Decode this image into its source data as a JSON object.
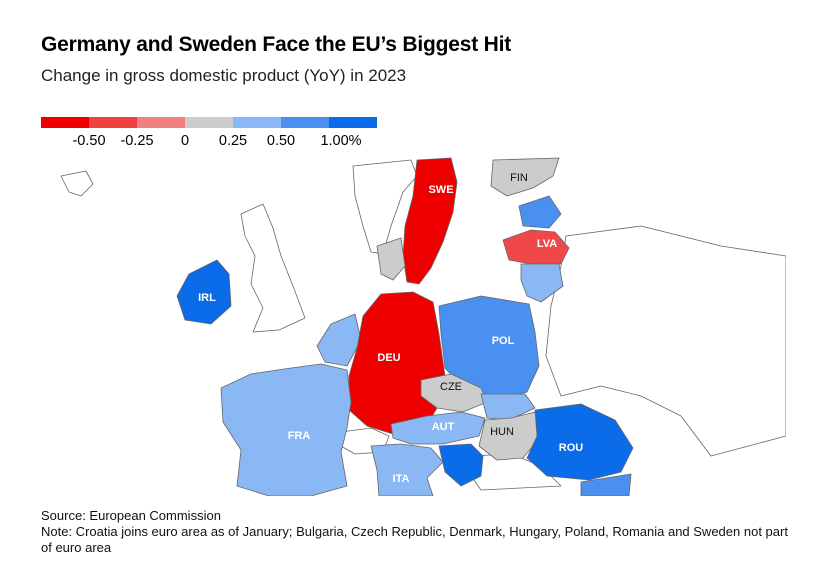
{
  "title": "Germany and Sweden Face the EU’s Biggest Hit",
  "subtitle": "Change in gross domestic product (YoY) in 2023",
  "legend": {
    "swatches": [
      "#ee0000",
      "#f04040",
      "#f28080",
      "#cccccc",
      "#8ab8f5",
      "#4a90f0",
      "#0a6ce8"
    ],
    "labels": [
      "-0.50",
      "-0.25",
      "0",
      "0.25",
      "0.50",
      "1.00%"
    ]
  },
  "colors": {
    "strong_negative": "#ee0000",
    "negative": "#f04848",
    "neutral": "#cccccc",
    "light_positive": "#8ab8f5",
    "positive": "#4a90f0",
    "strong_positive": "#0a6ce8",
    "non_eu": "#ffffff",
    "border": "#666666"
  },
  "countries": {
    "swe": "SWE",
    "fin": "FIN",
    "lva": "LVA",
    "irl": "IRL",
    "deu": "DEU",
    "pol": "POL",
    "cze": "CZE",
    "fra": "FRA",
    "aut": "AUT",
    "hun": "HUN",
    "rou": "ROU",
    "ita": "ITA"
  },
  "footer": {
    "source": "Source: European Commission",
    "note": "Note: Croatia joins euro area as of January; Bulgaria, Czech Republic, Denmark, Hungary, Poland, Romania and Sweden not part of euro area"
  }
}
